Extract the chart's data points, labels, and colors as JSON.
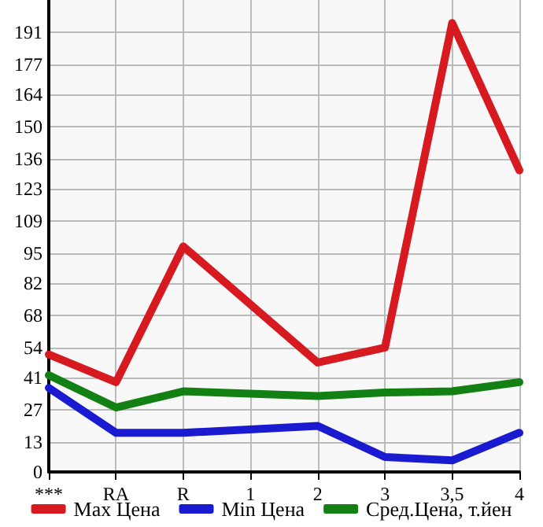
{
  "chart_data": {
    "type": "line",
    "categories": [
      "***",
      "RA",
      "R",
      "1",
      "2",
      "3",
      "3,5",
      "4"
    ],
    "series": [
      {
        "name": "Max Цена",
        "color": "#d71920",
        "values": [
          51,
          39,
          98,
          null,
          47.5,
          54,
          195,
          131
        ]
      },
      {
        "name": "Min Цена",
        "color": "#1a1ad0",
        "values": [
          36.5,
          17,
          17,
          null,
          20,
          6.5,
          5,
          17
        ]
      },
      {
        "name": "Сред.Цена, т.йен",
        "color": "#138013",
        "values": [
          42,
          28,
          35,
          null,
          33,
          34.5,
          35,
          39
        ]
      }
    ],
    "ylim": [
      0,
      205
    ],
    "yticks": [
      0,
      13,
      27,
      41,
      54,
      68,
      82,
      95,
      109,
      123,
      136,
      150,
      164,
      177,
      191
    ],
    "grid": true,
    "legend": "bottom",
    "marker": "none",
    "line_style": "solid"
  }
}
